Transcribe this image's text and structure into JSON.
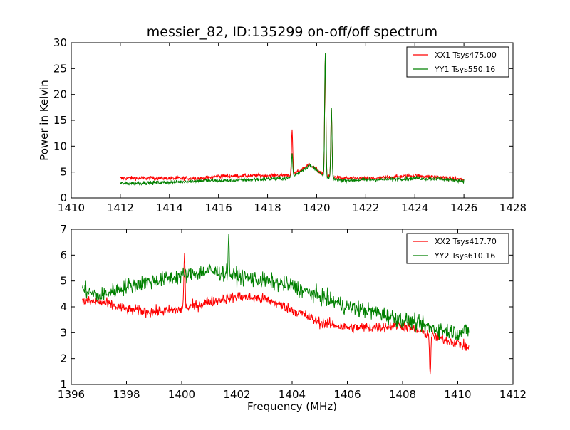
{
  "chart_data": [
    {
      "type": "line",
      "title": "messier_82, ID:135299 on-off/off spectrum",
      "xlabel": "",
      "ylabel": "Power in Kelvin",
      "xlim": [
        1410,
        1428
      ],
      "ylim": [
        0,
        30
      ],
      "xticks": [
        "1410",
        "1412",
        "1414",
        "1416",
        "1418",
        "1420",
        "1422",
        "1424",
        "1426",
        "1428"
      ],
      "yticks": [
        "0",
        "5",
        "10",
        "15",
        "20",
        "25",
        "30"
      ],
      "legend_position": "top-right",
      "grid": false,
      "series": [
        {
          "name": "XX1 Tsys475.00",
          "color": "#ff0000",
          "x_range": [
            1412.0,
            1426.0
          ],
          "baseline": [
            [
              1412.0,
              3.8
            ],
            [
              1415.5,
              3.8
            ],
            [
              1416.0,
              4.2
            ],
            [
              1418.8,
              4.4
            ],
            [
              1419.0,
              4.6
            ],
            [
              1419.3,
              5.2
            ],
            [
              1419.7,
              6.5
            ],
            [
              1420.0,
              5.5
            ],
            [
              1420.3,
              4.3
            ],
            [
              1421.0,
              3.8
            ],
            [
              1422.0,
              3.7
            ],
            [
              1423.0,
              4.0
            ],
            [
              1424.0,
              4.3
            ],
            [
              1425.0,
              4.0
            ],
            [
              1426.0,
              3.5
            ]
          ],
          "noise": 0.55,
          "peaks": [
            [
              1419.0,
              13.0
            ],
            [
              1420.35,
              27.5
            ],
            [
              1420.6,
              17.0
            ]
          ]
        },
        {
          "name": "YY1 Tsys550.16",
          "color": "#008000",
          "x_range": [
            1412.0,
            1426.0
          ],
          "baseline": [
            [
              1412.0,
              2.8
            ],
            [
              1414.0,
              3.0
            ],
            [
              1415.5,
              3.4
            ],
            [
              1416.0,
              3.3
            ],
            [
              1418.8,
              3.8
            ],
            [
              1419.0,
              4.0
            ],
            [
              1419.3,
              5.0
            ],
            [
              1419.7,
              6.3
            ],
            [
              1420.0,
              5.5
            ],
            [
              1420.3,
              4.0
            ],
            [
              1421.0,
              3.4
            ],
            [
              1422.0,
              3.5
            ],
            [
              1423.0,
              3.6
            ],
            [
              1424.0,
              3.8
            ],
            [
              1425.0,
              3.7
            ],
            [
              1426.0,
              3.3
            ]
          ],
          "noise": 0.5,
          "peaks": [
            [
              1419.0,
              8.5
            ],
            [
              1420.35,
              28.0
            ],
            [
              1420.6,
              17.5
            ]
          ]
        }
      ]
    },
    {
      "type": "line",
      "title": "",
      "xlabel": "Frequency (MHz)",
      "ylabel": "",
      "xlim": [
        1396,
        1412
      ],
      "ylim": [
        1,
        7
      ],
      "xticks": [
        "1396",
        "1398",
        "1400",
        "1402",
        "1404",
        "1406",
        "1408",
        "1410",
        "1412"
      ],
      "yticks": [
        "1",
        "2",
        "3",
        "4",
        "5",
        "6",
        "7"
      ],
      "legend_position": "top-right",
      "grid": false,
      "series": [
        {
          "name": "XX2 Tsys417.70",
          "color": "#ff0000",
          "x_range": [
            1396.4,
            1410.4
          ],
          "baseline": [
            [
              1396.4,
              4.2
            ],
            [
              1397.0,
              4.2
            ],
            [
              1398.0,
              3.9
            ],
            [
              1399.0,
              3.8
            ],
            [
              1400.0,
              3.9
            ],
            [
              1401.0,
              4.2
            ],
            [
              1402.0,
              4.4
            ],
            [
              1403.0,
              4.3
            ],
            [
              1404.0,
              3.9
            ],
            [
              1405.0,
              3.4
            ],
            [
              1406.0,
              3.2
            ],
            [
              1407.0,
              3.2
            ],
            [
              1408.0,
              3.3
            ],
            [
              1409.0,
              2.9
            ],
            [
              1410.0,
              2.6
            ],
            [
              1410.4,
              2.4
            ]
          ],
          "noise": 0.3,
          "peaks": [
            [
              1409.0,
              1.4
            ],
            [
              1400.1,
              6.1
            ]
          ]
        },
        {
          "name": "YY2 Tsys610.16",
          "color": "#008000",
          "x_range": [
            1396.4,
            1410.4
          ],
          "baseline": [
            [
              1396.4,
              4.7
            ],
            [
              1397.0,
              4.4
            ],
            [
              1398.0,
              4.8
            ],
            [
              1399.0,
              5.0
            ],
            [
              1400.0,
              5.2
            ],
            [
              1401.0,
              5.4
            ],
            [
              1402.0,
              5.2
            ],
            [
              1403.0,
              5.0
            ],
            [
              1404.0,
              4.8
            ],
            [
              1405.0,
              4.4
            ],
            [
              1406.0,
              4.0
            ],
            [
              1407.0,
              3.8
            ],
            [
              1408.0,
              3.5
            ],
            [
              1409.0,
              3.2
            ],
            [
              1410.0,
              3.0
            ],
            [
              1410.4,
              3.1
            ]
          ],
          "noise": 0.45,
          "peaks": [
            [
              1401.7,
              6.6
            ]
          ]
        }
      ]
    }
  ]
}
